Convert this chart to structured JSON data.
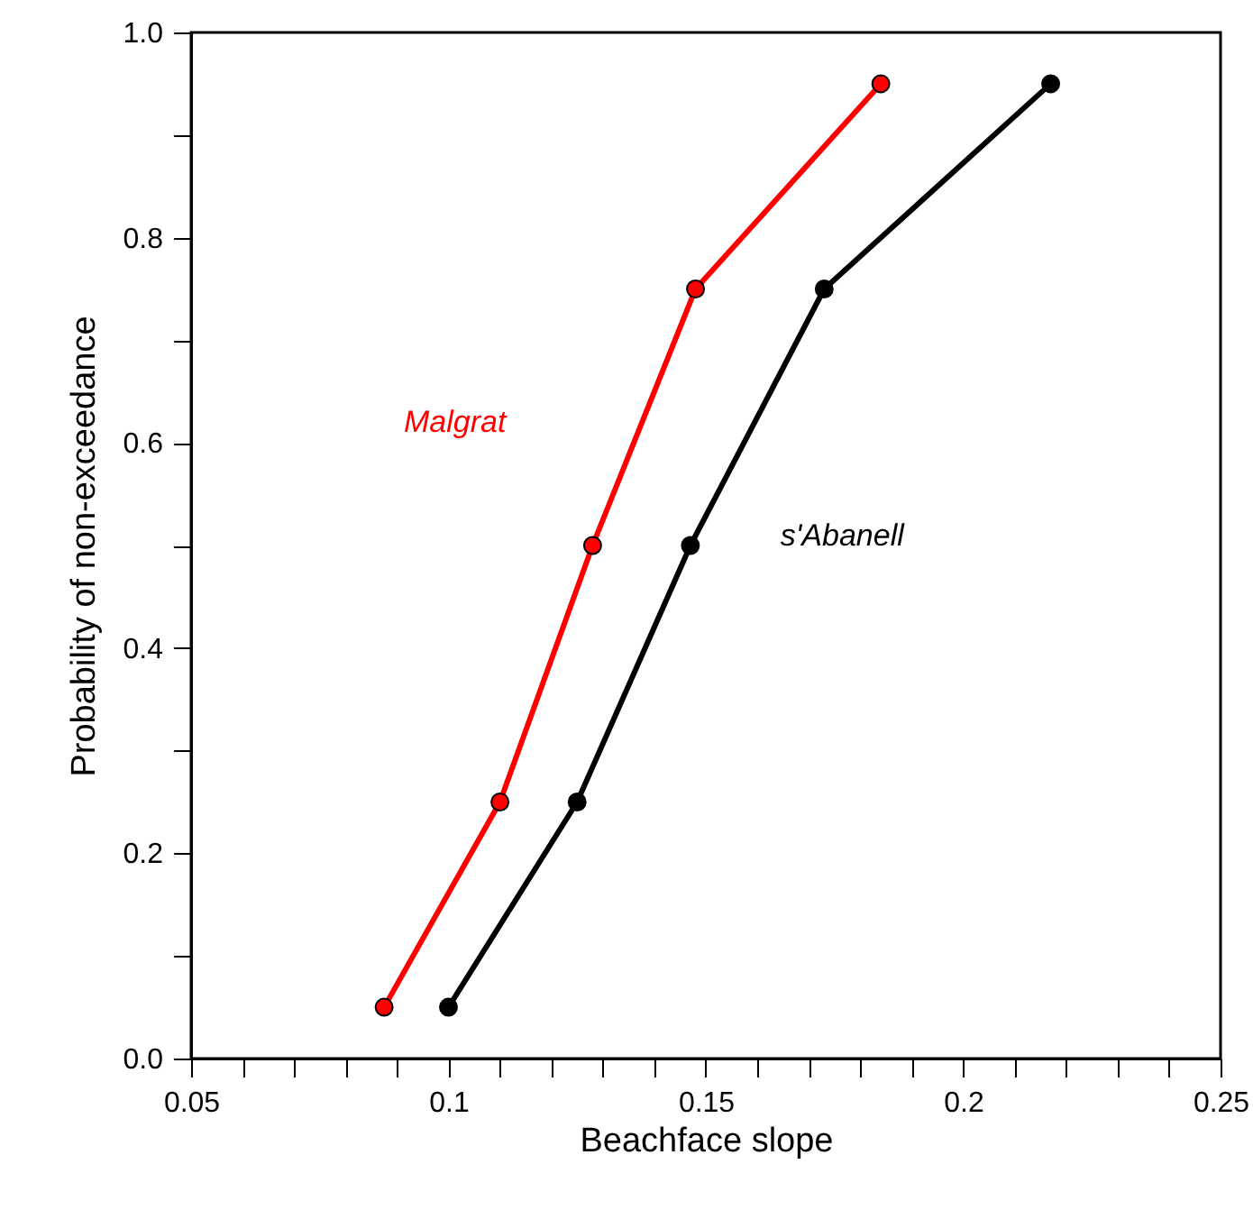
{
  "chart_data": {
    "type": "line",
    "xlabel": "Beachface slope",
    "ylabel": "Probability of non-exceedance",
    "series": [
      {
        "name": "Malgrat",
        "color": "#ff0000",
        "x": [
          0.0875,
          0.11,
          0.128,
          0.148,
          0.184
        ],
        "values": [
          0.05,
          0.25,
          0.5,
          0.75,
          0.95
        ]
      },
      {
        "name": "s'Abanell",
        "color": "#000000",
        "x": [
          0.1,
          0.125,
          0.147,
          0.173,
          0.217
        ],
        "values": [
          0.05,
          0.25,
          0.5,
          0.75,
          0.95
        ]
      }
    ],
    "xlim": [
      0.05,
      0.25
    ],
    "ylim": [
      0,
      1
    ],
    "xticks": [
      0.05,
      {
        "value": 0.06,
        "label": null
      },
      {
        "value": 0.07,
        "label": null
      },
      {
        "value": 0.08,
        "label": null
      },
      {
        "value": 0.09,
        "label": null
      },
      0.1,
      {
        "value": 0.11,
        "label": null
      },
      {
        "value": 0.12,
        "label": null
      },
      {
        "value": 0.13,
        "label": null
      },
      {
        "value": 0.14,
        "label": null
      },
      0.15,
      {
        "value": 0.16,
        "label": null
      },
      {
        "value": 0.17,
        "label": null
      },
      {
        "value": 0.18,
        "label": null
      },
      {
        "value": 0.19,
        "label": null
      },
      0.2,
      {
        "value": 0.21,
        "label": null
      },
      {
        "value": 0.22,
        "label": null
      },
      {
        "value": 0.23,
        "label": null
      },
      {
        "value": 0.24,
        "label": null
      },
      0.25
    ],
    "yticks": [
      {
        "value": 0,
        "label": "0.0"
      },
      {
        "value": 0.1,
        "label": null
      },
      {
        "value": 0.2,
        "label": "0.2"
      },
      {
        "value": 0.3,
        "label": null
      },
      {
        "value": 0.4,
        "label": "0.4"
      },
      {
        "value": 0.5,
        "label": null
      },
      {
        "value": 0.6,
        "label": "0.6"
      },
      {
        "value": 0.7,
        "label": null
      },
      {
        "value": 0.8,
        "label": "0.8"
      },
      {
        "value": 0.9,
        "label": null
      },
      {
        "value": 1,
        "label": "1.0"
      }
    ],
    "grid": false,
    "marker": "circle",
    "line_style": "solid"
  }
}
